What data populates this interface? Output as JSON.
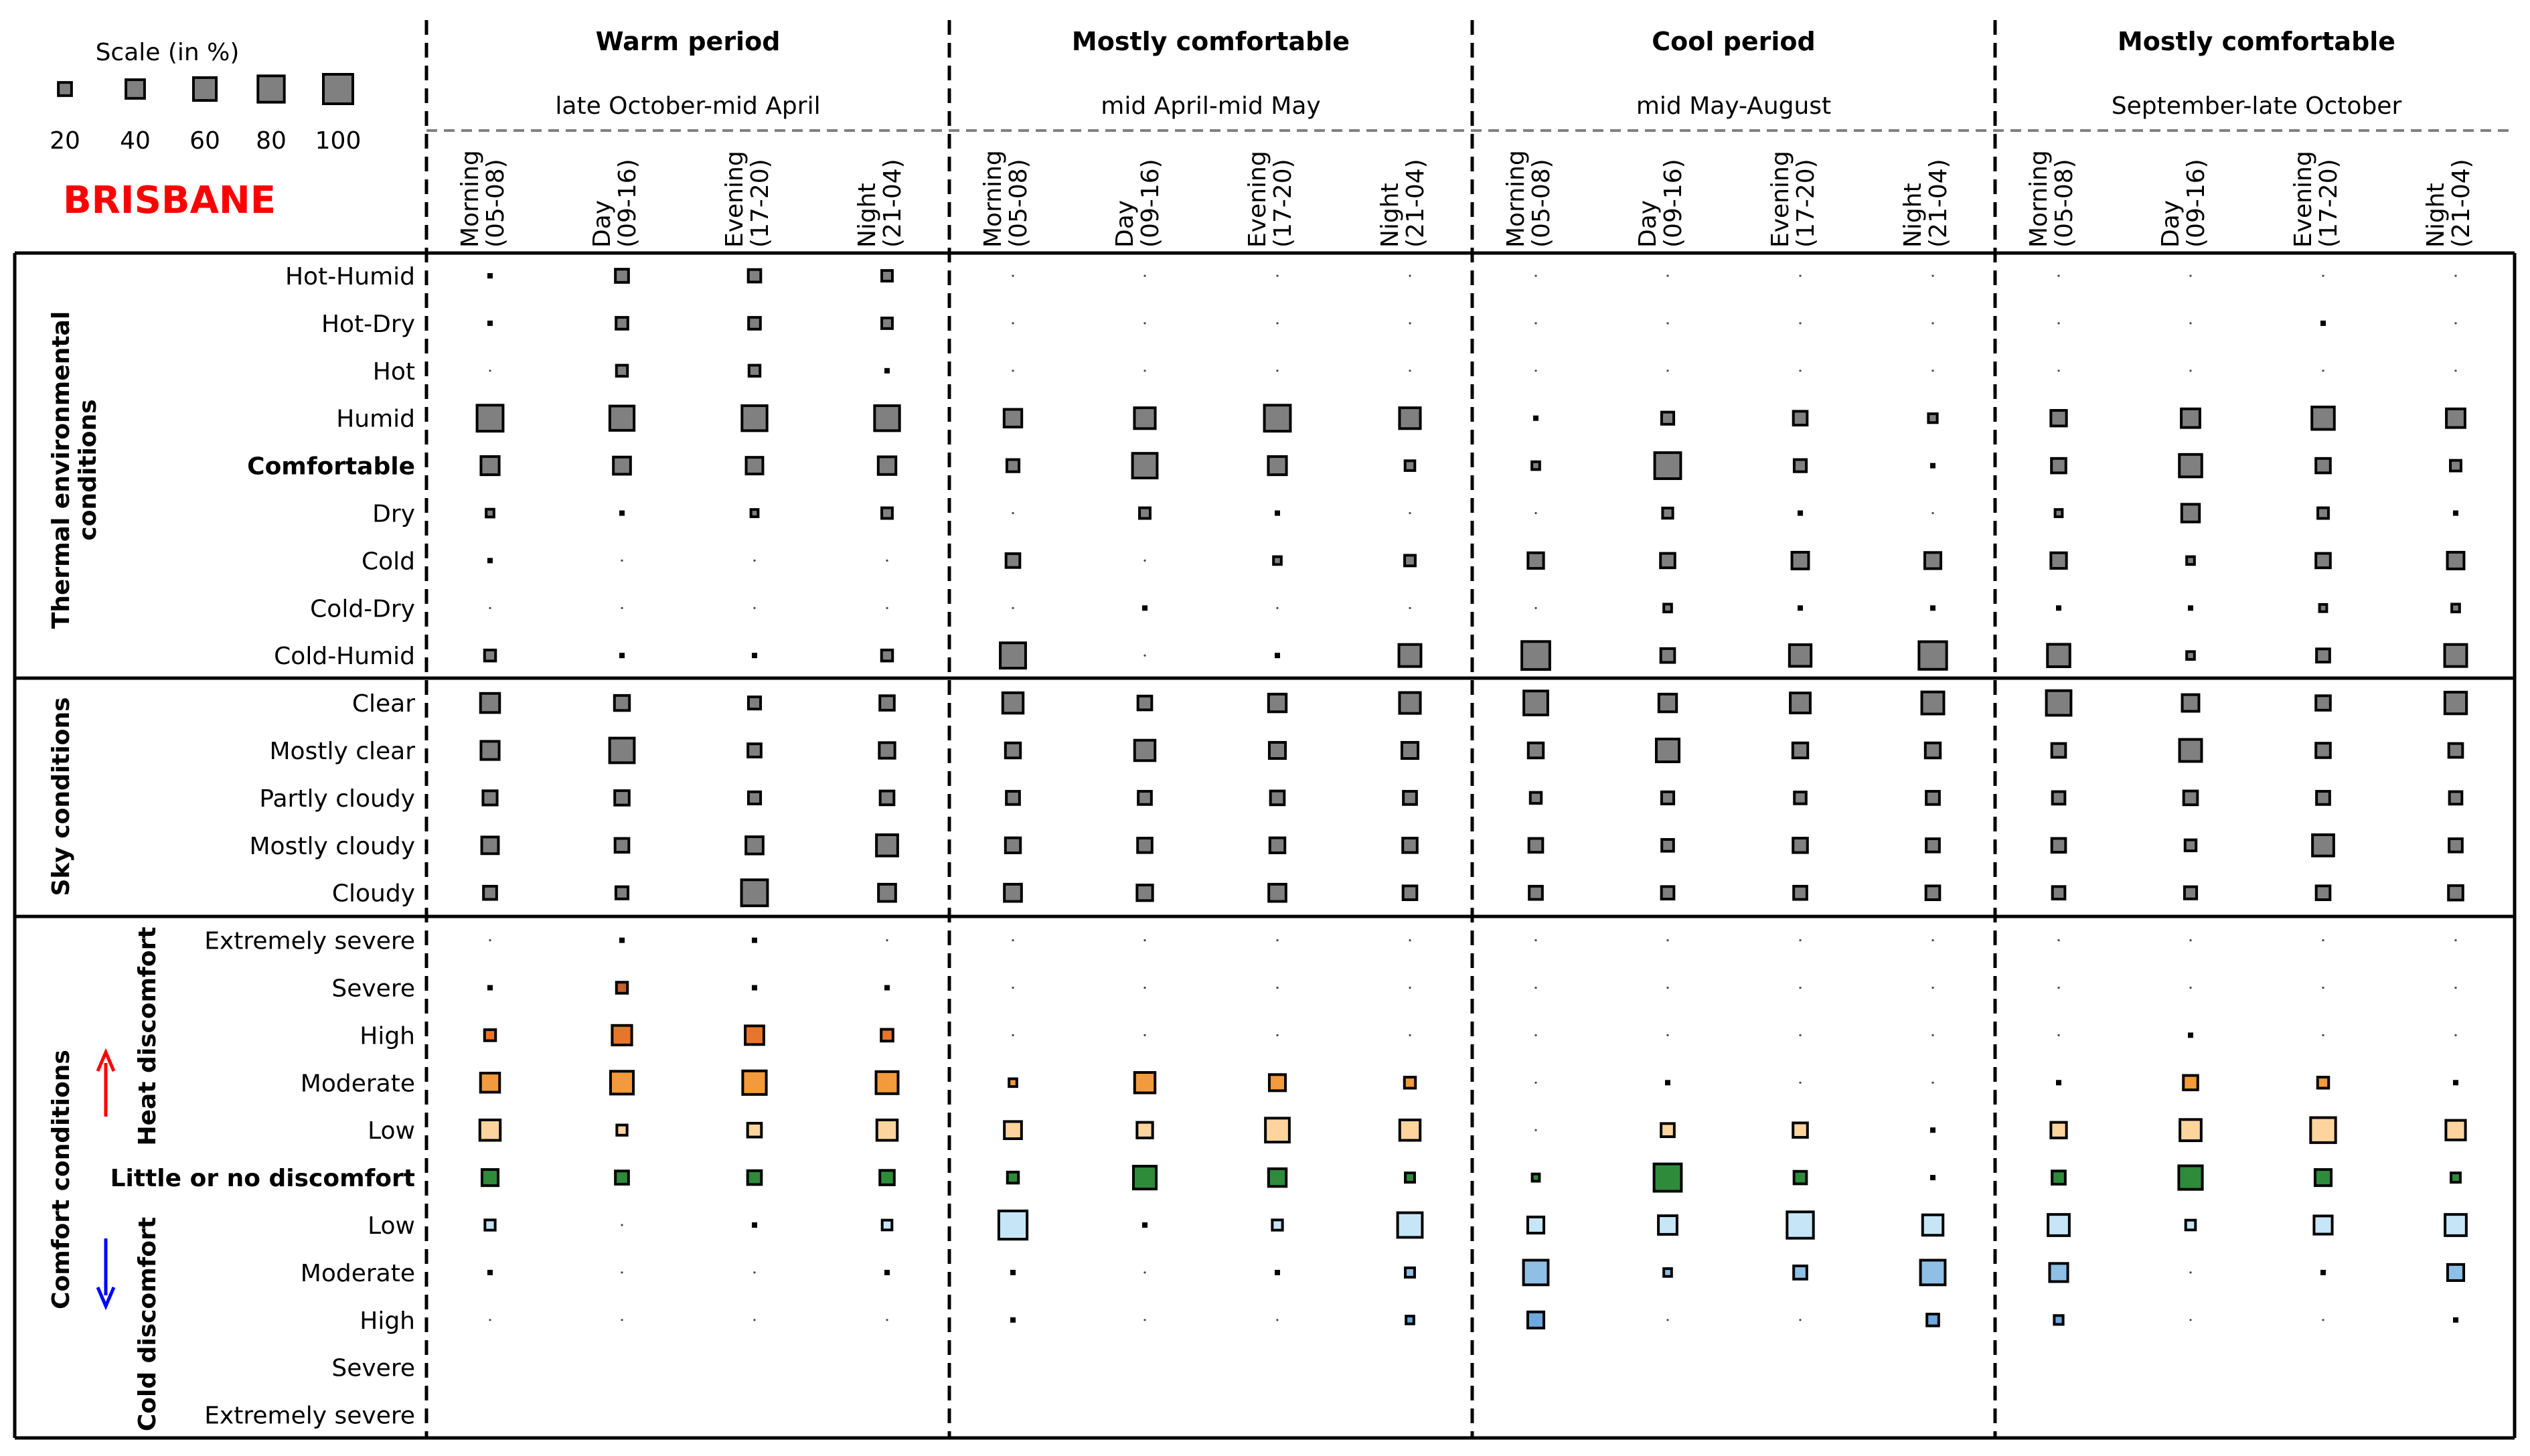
{
  "chart_data": {
    "type": "bubble-matrix",
    "city": "BRISBANE",
    "scale": {
      "title": "Scale (in %)",
      "values": [
        20,
        40,
        60,
        80,
        100
      ]
    },
    "periods": [
      {
        "name": "Warm period",
        "range": "late October-mid April"
      },
      {
        "name": "Mostly comfortable",
        "range": "mid April-mid May"
      },
      {
        "name": "Cool period",
        "range": "mid May-August"
      },
      {
        "name": "Mostly comfortable",
        "range": "September-late October"
      }
    ],
    "time_slots": [
      {
        "name": "Morning",
        "hours": "(05-08)"
      },
      {
        "name": "Day",
        "hours": "(09-16)"
      },
      {
        "name": "Evening",
        "hours": "(17-20)"
      },
      {
        "name": "Night",
        "hours": "(21-04)"
      }
    ],
    "groups": [
      {
        "label_lines": [
          "Thermal environmental",
          "conditions"
        ]
      },
      {
        "label_lines": [
          "Sky conditions"
        ]
      },
      {
        "label_lines": [
          "Comfort conditions"
        ],
        "heat_label": "Heat discomfort",
        "cold_label": "Cold discomfort"
      }
    ],
    "colors": {
      "neutral": "#808080",
      "heat_extreme": "#a0421f",
      "heat_severe": "#c8602c",
      "heat_high": "#e8762a",
      "heat_moderate": "#f29a3c",
      "heat_low": "#fdd49e",
      "comfort": "#2e8b3a",
      "cold_low": "#c6e6f7",
      "cold_moderate": "#8ec0e6",
      "cold_high": "#6ea8dc",
      "heat_arrow": "#ff0000",
      "cold_arrow": "#0000ff",
      "city": "#ff0000"
    },
    "rows": [
      {
        "label": "Hot-Humid",
        "group": 0,
        "color": "neutral",
        "bold": false,
        "values": [
          3,
          20,
          18,
          13,
          0,
          0,
          0,
          0,
          0,
          0,
          0,
          0,
          0,
          0,
          0,
          0
        ]
      },
      {
        "label": "Hot-Dry",
        "group": 0,
        "color": "neutral",
        "bold": false,
        "values": [
          2,
          16,
          16,
          13,
          0,
          0,
          0,
          0,
          0,
          0,
          0,
          0,
          0,
          0,
          4,
          0
        ]
      },
      {
        "label": "Hot",
        "group": 0,
        "color": "neutral",
        "bold": false,
        "values": [
          0,
          14,
          14,
          3,
          0,
          0,
          0,
          0,
          0,
          0,
          0,
          0,
          0,
          0,
          0,
          0
        ]
      },
      {
        "label": "Humid",
        "group": 0,
        "color": "neutral",
        "bold": false,
        "values": [
          78,
          68,
          72,
          72,
          36,
          50,
          78,
          50,
          3,
          17,
          22,
          9,
          28,
          40,
          58,
          40
        ]
      },
      {
        "label": "Comfortable",
        "group": 0,
        "color": "neutral",
        "bold": true,
        "values": [
          38,
          34,
          32,
          36,
          17,
          70,
          38,
          11,
          7,
          78,
          17,
          5,
          24,
          58,
          24,
          13
        ]
      },
      {
        "label": "Dry",
        "group": 0,
        "color": "neutral",
        "bold": false,
        "values": [
          7,
          5,
          6,
          13,
          0,
          13,
          3,
          0,
          0,
          12,
          3,
          0,
          6,
          36,
          13,
          2
        ]
      },
      {
        "label": "Cold",
        "group": 0,
        "color": "neutral",
        "bold": false,
        "values": [
          2,
          0,
          0,
          0,
          22,
          0,
          7,
          13,
          28,
          24,
          32,
          30,
          28,
          7,
          24,
          32
        ]
      },
      {
        "label": "Cold-Dry",
        "group": 0,
        "color": "neutral",
        "bold": false,
        "values": [
          0,
          0,
          0,
          0,
          0,
          2,
          0,
          0,
          0,
          7,
          5,
          2,
          5,
          3,
          6,
          7
        ]
      },
      {
        "label": "Cold-Humid",
        "group": 0,
        "color": "neutral",
        "bold": false,
        "values": [
          14,
          3,
          5,
          14,
          74,
          0,
          4,
          56,
          90,
          22,
          54,
          88,
          58,
          7,
          20,
          56
        ]
      },
      {
        "label": "Clear",
        "group": 1,
        "color": "neutral",
        "bold": false,
        "values": [
          42,
          26,
          17,
          24,
          48,
          22,
          36,
          50,
          66,
          36,
          46,
          56,
          70,
          32,
          24,
          54
        ]
      },
      {
        "label": "Mostly clear",
        "group": 1,
        "color": "neutral",
        "bold": false,
        "values": [
          38,
          70,
          20,
          28,
          26,
          48,
          30,
          30,
          26,
          60,
          26,
          26,
          22,
          56,
          24,
          22
        ]
      },
      {
        "label": "Partly cloudy",
        "group": 1,
        "color": "neutral",
        "bold": false,
        "values": [
          23,
          24,
          17,
          22,
          20,
          20,
          22,
          20,
          14,
          17,
          16,
          20,
          18,
          22,
          20,
          18
        ]
      },
      {
        "label": "Mostly cloudy",
        "group": 1,
        "color": "neutral",
        "bold": false,
        "values": [
          32,
          22,
          34,
          52,
          26,
          24,
          26,
          24,
          22,
          16,
          24,
          20,
          22,
          14,
          52,
          20
        ]
      },
      {
        "label": "Cloudy",
        "group": 1,
        "color": "neutral",
        "bold": false,
        "values": [
          20,
          17,
          78,
          34,
          34,
          28,
          34,
          22,
          20,
          18,
          20,
          22,
          18,
          17,
          22,
          24
        ]
      },
      {
        "label": "Extremely severe",
        "group": 2,
        "side": "heat",
        "color": "heat_extreme",
        "bold": false,
        "values": [
          0,
          4,
          4,
          0,
          0,
          0,
          0,
          0,
          0,
          0,
          0,
          0,
          0,
          0,
          0,
          0
        ]
      },
      {
        "label": "Severe",
        "group": 2,
        "side": "heat",
        "color": "heat_severe",
        "bold": false,
        "values": [
          3,
          14,
          5,
          5,
          0,
          0,
          0,
          0,
          0,
          0,
          0,
          0,
          0,
          0,
          0,
          0
        ]
      },
      {
        "label": "High",
        "group": 2,
        "side": "heat",
        "color": "heat_high",
        "bold": false,
        "values": [
          14,
          44,
          40,
          16,
          0,
          0,
          0,
          0,
          0,
          0,
          0,
          0,
          0,
          2,
          0,
          0
        ]
      },
      {
        "label": "Moderate",
        "group": 2,
        "side": "heat",
        "color": "heat_moderate",
        "bold": false,
        "values": [
          42,
          60,
          64,
          56,
          7,
          48,
          30,
          14,
          0,
          4,
          0,
          0,
          3,
          24,
          14,
          3
        ]
      },
      {
        "label": "Low",
        "group": 2,
        "side": "heat",
        "color": "heat_low",
        "bold": false,
        "values": [
          48,
          12,
          22,
          48,
          34,
          28,
          66,
          48,
          0,
          20,
          24,
          4,
          28,
          52,
          72,
          44
        ]
      },
      {
        "label": "Little or no discomfort",
        "group": 2,
        "side": "comfort",
        "color": "comfort",
        "bold": true,
        "values": [
          30,
          20,
          22,
          24,
          14,
          60,
          36,
          10,
          6,
          86,
          18,
          4,
          20,
          64,
          30,
          10
        ]
      },
      {
        "label": "Low",
        "group": 2,
        "side": "cold",
        "color": "cold_low",
        "bold": false,
        "values": [
          12,
          0,
          2,
          11,
          92,
          3,
          12,
          70,
          30,
          40,
          80,
          48,
          52,
          11,
          38,
          52
        ]
      },
      {
        "label": "Moderate",
        "group": 2,
        "side": "cold",
        "color": "cold_moderate",
        "bold": false,
        "values": [
          2,
          0,
          0,
          4,
          5,
          0,
          3,
          10,
          70,
          7,
          20,
          70,
          38,
          0,
          4,
          30
        ]
      },
      {
        "label": "High",
        "group": 2,
        "side": "cold",
        "color": "cold_high",
        "bold": false,
        "values": [
          0,
          0,
          0,
          0,
          5,
          0,
          0,
          7,
          30,
          0,
          0,
          16,
          9,
          0,
          0,
          5
        ]
      },
      {
        "label": "Severe",
        "group": 2,
        "side": "cold",
        "color": "cold_high",
        "bold": false,
        "values": []
      },
      {
        "label": "Extremely severe",
        "group": 2,
        "side": "cold",
        "color": "cold_high",
        "bold": false,
        "values": []
      }
    ]
  }
}
